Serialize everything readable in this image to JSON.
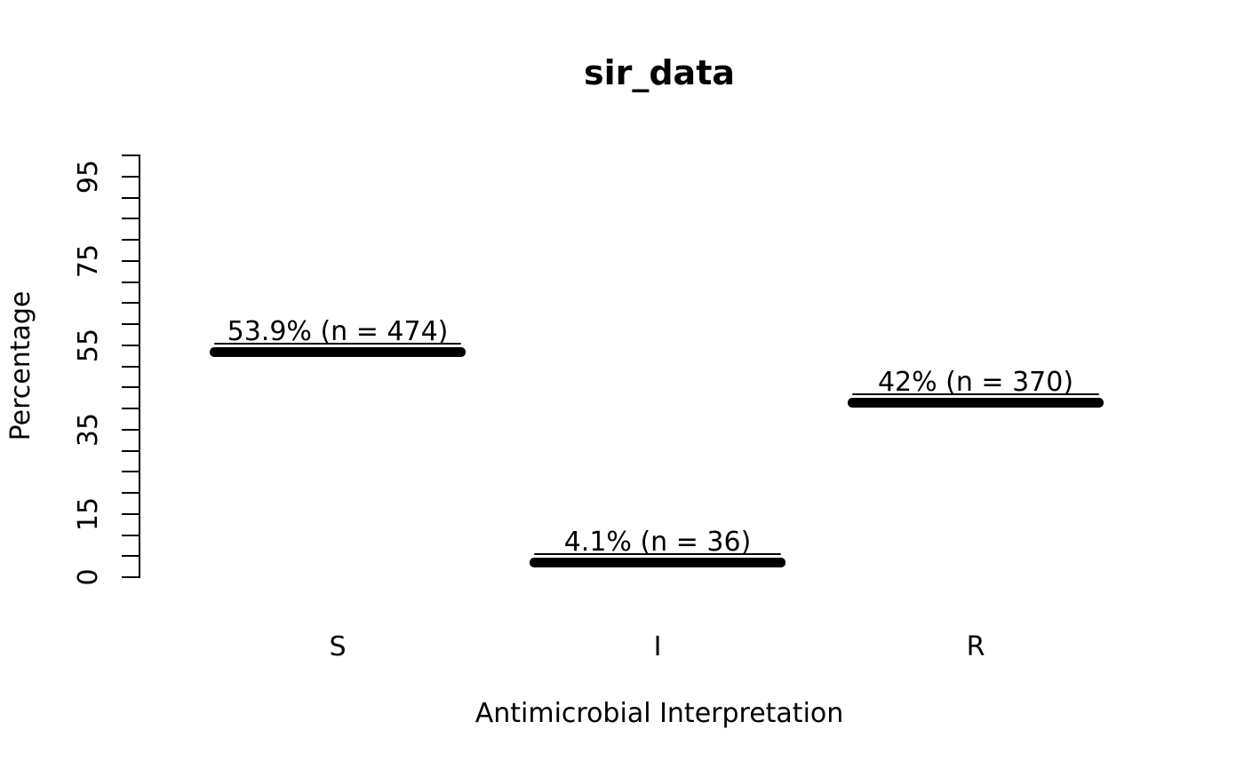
{
  "chart_data": {
    "type": "bar",
    "title": "sir_data",
    "xlabel": "Antimicrobial Interpretation",
    "ylabel": "Percentage",
    "categories": [
      "S",
      "I",
      "R"
    ],
    "values": [
      53.9,
      4.1,
      42
    ],
    "counts": [
      474,
      36,
      370
    ],
    "value_labels": [
      "53.9% (n = 474)",
      "4.1% (n = 36)",
      "42% (n = 370)"
    ],
    "ylim": [
      0,
      100
    ],
    "ytick_step": 5,
    "ytick_labels": [
      0,
      15,
      35,
      55,
      75,
      95
    ],
    "grid": false,
    "legend": false,
    "bar_color": "#000000",
    "text_color": "#000000",
    "background_color": "#ffffff"
  }
}
